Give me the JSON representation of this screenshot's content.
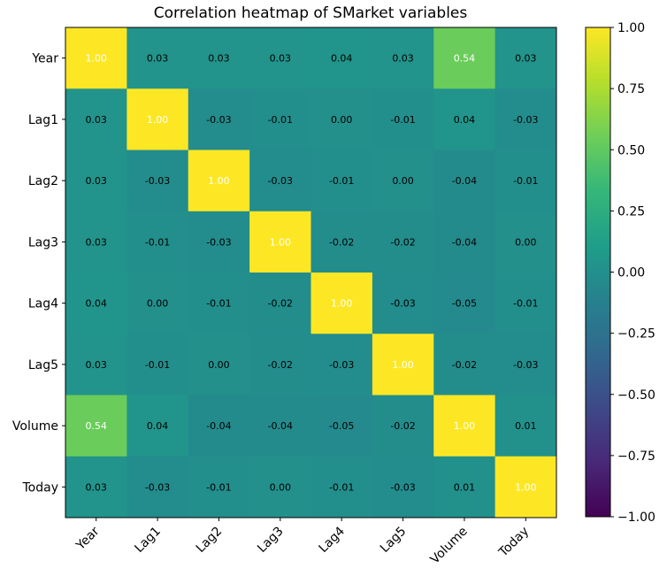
{
  "chart_data": {
    "type": "heatmap",
    "title": "Correlation heatmap of SMarket variables",
    "rows": [
      "Year",
      "Lag1",
      "Lag2",
      "Lag3",
      "Lag4",
      "Lag5",
      "Volume",
      "Today"
    ],
    "columns": [
      "Year",
      "Lag1",
      "Lag2",
      "Lag3",
      "Lag4",
      "Lag5",
      "Volume",
      "Today"
    ],
    "values": [
      [
        1.0,
        0.03,
        0.03,
        0.03,
        0.04,
        0.03,
        0.54,
        0.03
      ],
      [
        0.03,
        1.0,
        -0.03,
        -0.01,
        -0.0,
        -0.01,
        0.04,
        -0.03
      ],
      [
        0.03,
        -0.03,
        1.0,
        -0.03,
        -0.01,
        -0.0,
        -0.04,
        -0.01
      ],
      [
        0.03,
        -0.01,
        -0.03,
        1.0,
        -0.02,
        -0.02,
        -0.04,
        -0.0
      ],
      [
        0.04,
        -0.0,
        -0.01,
        -0.02,
        1.0,
        -0.03,
        -0.05,
        -0.01
      ],
      [
        0.03,
        -0.01,
        -0.0,
        -0.02,
        -0.03,
        1.0,
        -0.02,
        -0.03
      ],
      [
        0.54,
        0.04,
        -0.04,
        -0.04,
        -0.05,
        -0.02,
        1.0,
        0.01
      ],
      [
        0.03,
        -0.03,
        -0.01,
        -0.0,
        -0.01,
        -0.03,
        0.01,
        1.0
      ]
    ],
    "value_format": "0.00",
    "colormap": "viridis",
    "vmin": -1.0,
    "vmax": 1.0,
    "colorbar": {
      "ticks": [
        1.0,
        0.75,
        0.5,
        0.25,
        0.0,
        -0.25,
        -0.5,
        -0.75,
        -1.0
      ],
      "tick_labels": [
        "1.00",
        "0.75",
        "0.50",
        "0.25",
        "0.00",
        "−0.25",
        "−0.50",
        "−0.75",
        "−1.00"
      ]
    }
  }
}
